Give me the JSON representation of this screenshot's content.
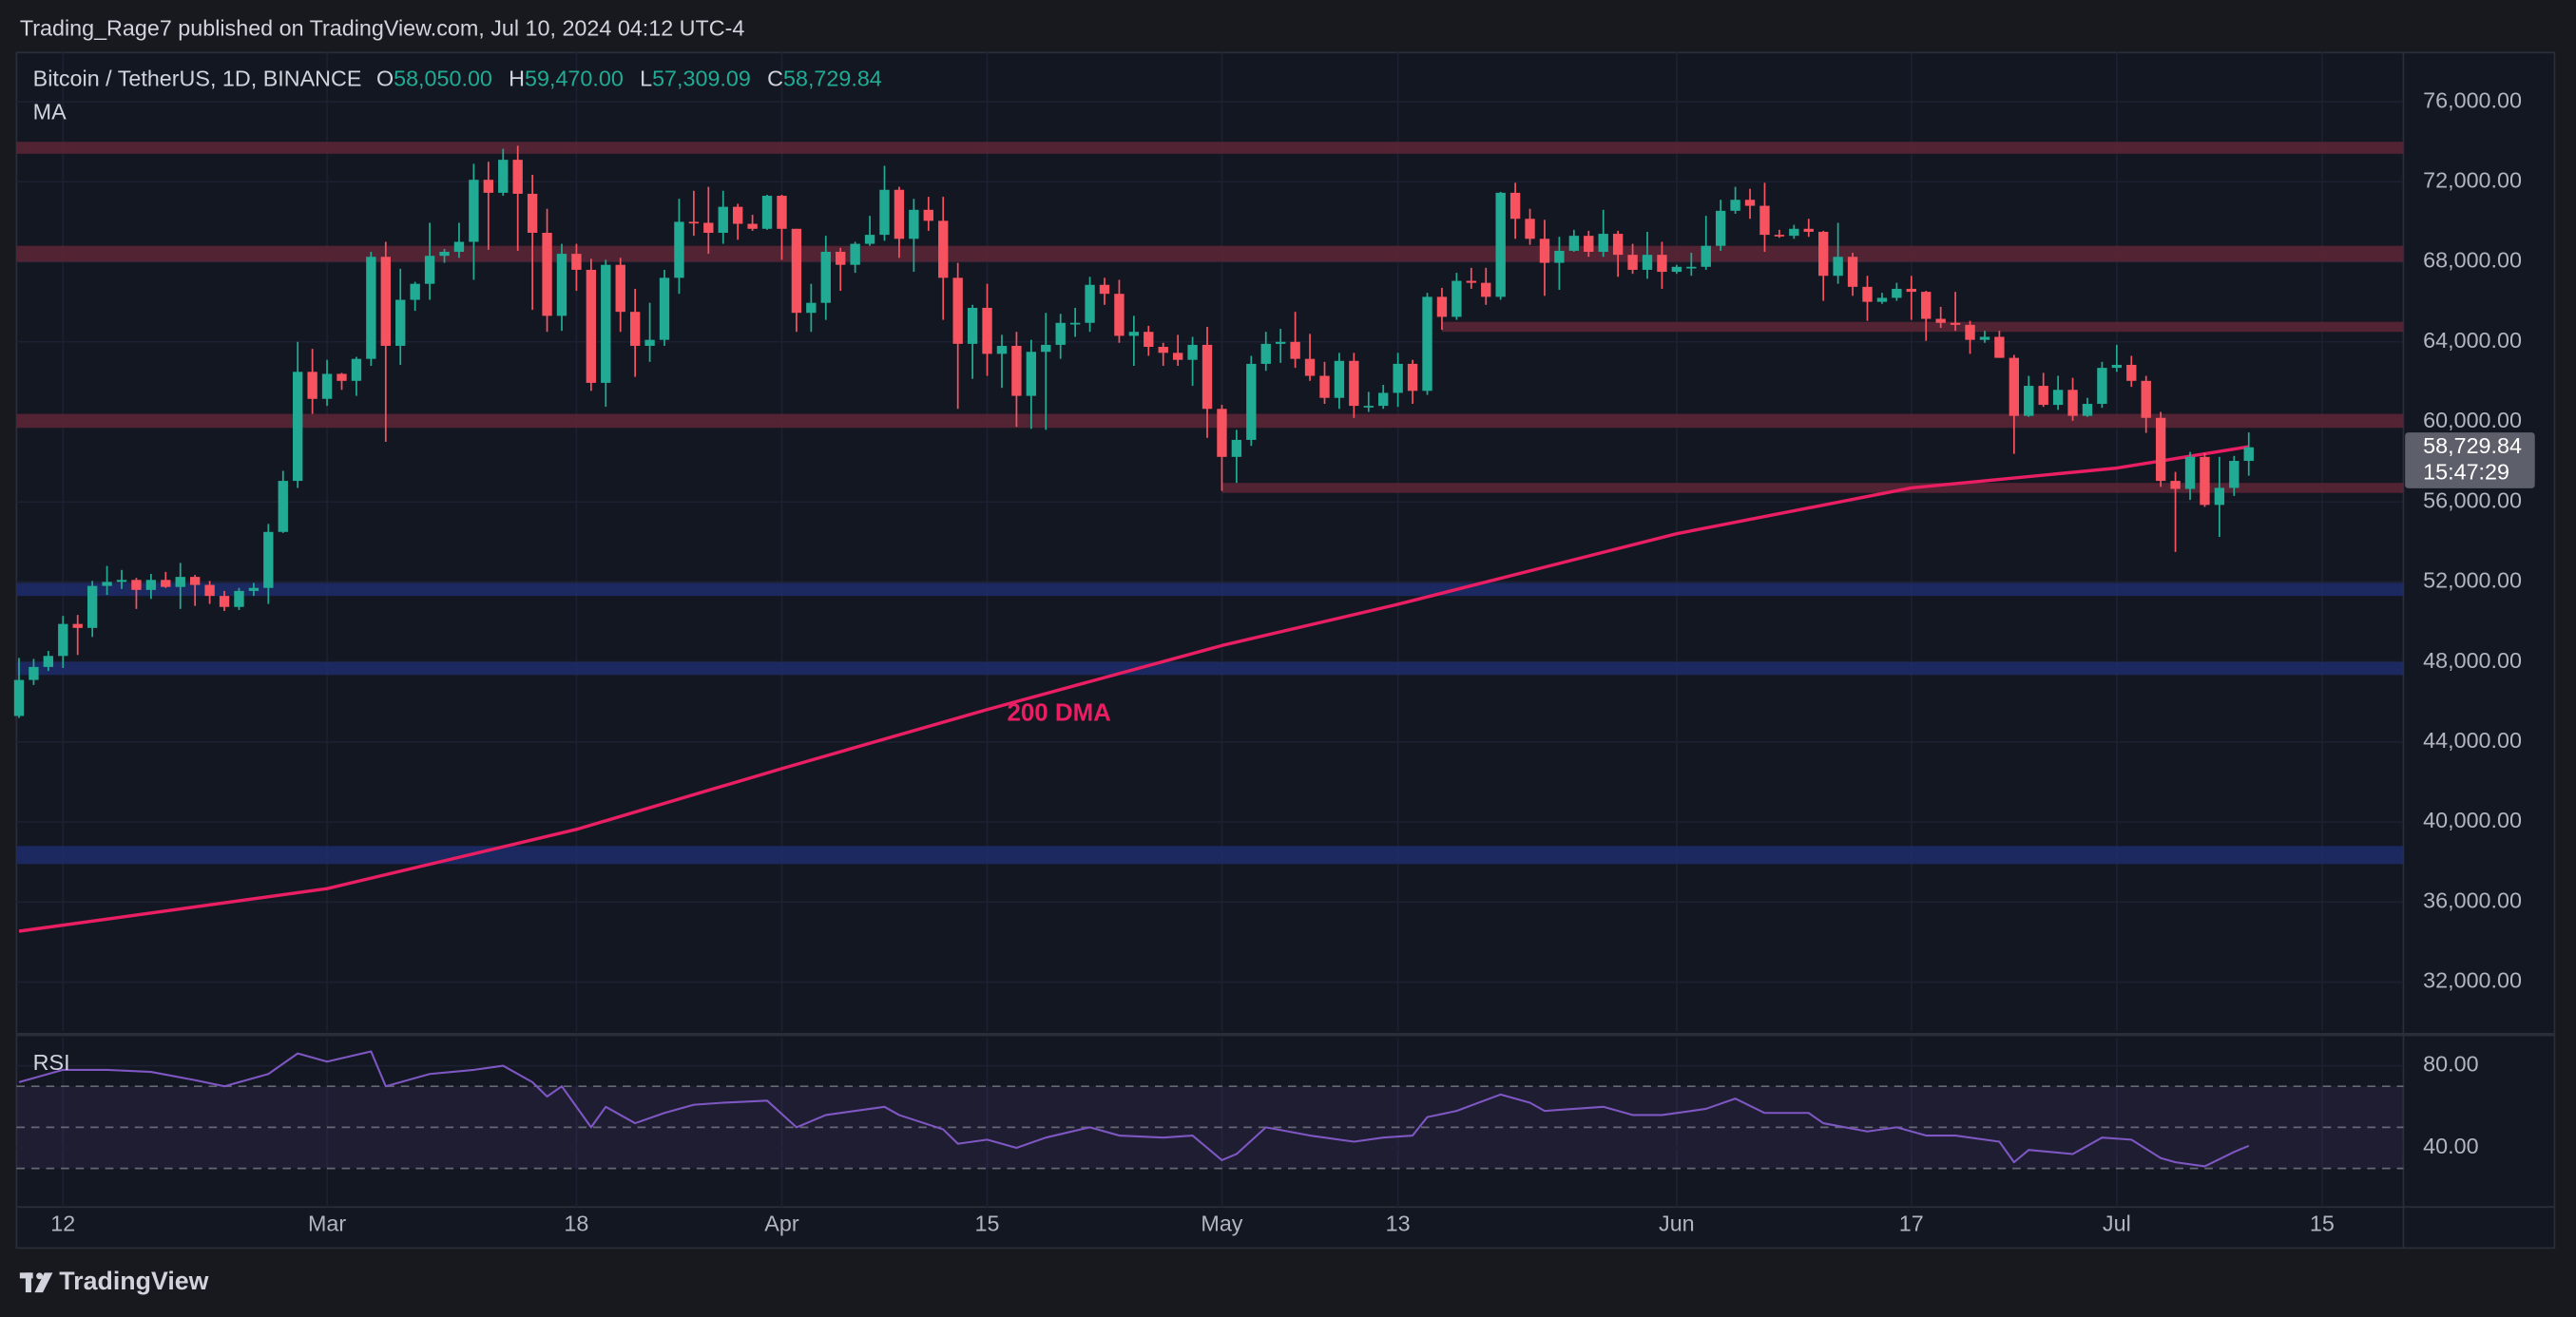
{
  "header": {
    "publisher": "Trading_Rage7 published on TradingView.com, Jul 10, 2024 04:12 UTC-4"
  },
  "footer": {
    "brand": "TradingView"
  },
  "chart_data": {
    "type": "candlestick",
    "title": "Bitcoin / TetherUS, 1D, BINANCE",
    "ohlc": [
      [
        "O",
        "58,050.00"
      ],
      [
        "H",
        "59,470.00"
      ],
      [
        "L",
        "57,309.09"
      ],
      [
        "C",
        "58,729.84"
      ]
    ],
    "indicator": "MA",
    "up_color": "#22ab94",
    "down_color": "#f7525f",
    "ylim": [
      29540,
      78460
    ],
    "yticks": [
      {
        "value": 76000,
        "label": "76,000.00"
      },
      {
        "value": 72000,
        "label": "72,000.00"
      },
      {
        "value": 68000,
        "label": "68,000.00"
      },
      {
        "value": 64000,
        "label": "64,000.00"
      },
      {
        "value": 60000,
        "label": "60,000.00"
      },
      {
        "value": 56000,
        "label": "56,000.00"
      },
      {
        "value": 52000,
        "label": "52,000.00"
      },
      {
        "value": 48000,
        "label": "48,000.00"
      },
      {
        "value": 44000,
        "label": "44,000.00"
      },
      {
        "value": 40000,
        "label": "40,000.00"
      },
      {
        "value": 36000,
        "label": "36,000.00"
      },
      {
        "value": 32000,
        "label": "32,000.00"
      }
    ],
    "xticks": [
      {
        "value": "Feb 12",
        "label": "12"
      },
      {
        "value": "Mar 1",
        "label": "Mar"
      },
      {
        "value": "Mar 18",
        "label": "18"
      },
      {
        "value": "Apr 1",
        "label": "Apr"
      },
      {
        "value": "Apr 15",
        "label": "15"
      },
      {
        "value": "May 1",
        "label": "May"
      },
      {
        "value": "May 13",
        "label": "13"
      },
      {
        "value": "Jun 1",
        "label": "Jun"
      },
      {
        "value": "Jun 17",
        "label": "17"
      },
      {
        "value": "Jul 1",
        "label": "Jul"
      },
      {
        "value": "Jul 15",
        "label": "15"
      }
    ],
    "grid": true,
    "last_price": {
      "value": 58729.84,
      "label": "58,729.84"
    },
    "countdown": "15:47:29",
    "zones": [
      {
        "low": 73400,
        "high": 74000,
        "color": "#5e2636"
      },
      {
        "low": 68000,
        "high": 68800,
        "color": "#5e2636"
      },
      {
        "low": 64500,
        "high": 65000,
        "color": "#5e2636",
        "from": "May 16"
      },
      {
        "low": 59700,
        "high": 60400,
        "color": "#5e2636"
      },
      {
        "low": 56450,
        "high": 56950,
        "color": "#5e2636",
        "from": "May 1"
      },
      {
        "low": 51300,
        "high": 51950,
        "color": "#1f2d6b"
      },
      {
        "low": 47350,
        "high": 48000,
        "color": "#1f2d6b"
      },
      {
        "low": 37900,
        "high": 38800,
        "color": "#1f2d6b"
      }
    ],
    "candles": {
      "x": [
        "Feb 9",
        "Feb 10",
        "Feb 11",
        "Feb 12",
        "Feb 13",
        "Feb 14",
        "Feb 15",
        "Feb 16",
        "Feb 17",
        "Feb 18",
        "Feb 19",
        "Feb 20",
        "Feb 21",
        "Feb 22",
        "Feb 23",
        "Feb 24",
        "Feb 25",
        "Feb 26",
        "Feb 27",
        "Feb 28",
        "Feb 29",
        "Mar 1",
        "Mar 2",
        "Mar 3",
        "Mar 4",
        "Mar 5",
        "Mar 6",
        "Mar 7",
        "Mar 8",
        "Mar 9",
        "Mar 10",
        "Mar 11",
        "Mar 12",
        "Mar 13",
        "Mar 14",
        "Mar 15",
        "Mar 16",
        "Mar 17",
        "Mar 18",
        "Mar 19",
        "Mar 20",
        "Mar 21",
        "Mar 22",
        "Mar 23",
        "Mar 24",
        "Mar 25",
        "Mar 26",
        "Mar 27",
        "Mar 28",
        "Mar 29",
        "Mar 30",
        "Mar 31",
        "Apr 1",
        "Apr 2",
        "Apr 3",
        "Apr 4",
        "Apr 5",
        "Apr 6",
        "Apr 7",
        "Apr 8",
        "Apr 9",
        "Apr 10",
        "Apr 11",
        "Apr 12",
        "Apr 13",
        "Apr 14",
        "Apr 15",
        "Apr 16",
        "Apr 17",
        "Apr 18",
        "Apr 19",
        "Apr 20",
        "Apr 21",
        "Apr 22",
        "Apr 23",
        "Apr 24",
        "Apr 25",
        "Apr 26",
        "Apr 27",
        "Apr 28",
        "Apr 29",
        "Apr 30",
        "May 1",
        "May 2",
        "May 3",
        "May 4",
        "May 5",
        "May 6",
        "May 7",
        "May 8",
        "May 9",
        "May 10",
        "May 11",
        "May 12",
        "May 13",
        "May 14",
        "May 15",
        "May 16",
        "May 17",
        "May 18",
        "May 19",
        "May 20",
        "May 21",
        "May 22",
        "May 23",
        "May 24",
        "May 25",
        "May 26",
        "May 27",
        "May 28",
        "May 29",
        "May 30",
        "May 31",
        "Jun 1",
        "Jun 2",
        "Jun 3",
        "Jun 4",
        "Jun 5",
        "Jun 6",
        "Jun 7",
        "Jun 8",
        "Jun 9",
        "Jun 10",
        "Jun 11",
        "Jun 12",
        "Jun 13",
        "Jun 14",
        "Jun 15",
        "Jun 16",
        "Jun 17",
        "Jun 18",
        "Jun 19",
        "Jun 20",
        "Jun 21",
        "Jun 22",
        "Jun 23",
        "Jun 24",
        "Jun 25",
        "Jun 26",
        "Jun 27",
        "Jun 28",
        "Jun 29",
        "Jun 30",
        "Jul 1",
        "Jul 2",
        "Jul 3",
        "Jul 4",
        "Jul 5",
        "Jul 6",
        "Jul 7",
        "Jul 8",
        "Jul 9",
        "Jul 10"
      ],
      "open": [
        45300,
        47100,
        47750,
        48300,
        49900,
        49700,
        51800,
        52000,
        52100,
        51600,
        52100,
        51750,
        52250,
        51850,
        51300,
        50750,
        51550,
        51700,
        54500,
        57050,
        62500,
        61150,
        62400,
        62050,
        63150,
        68250,
        63800,
        66100,
        66900,
        68300,
        68500,
        69000,
        72100,
        71450,
        73100,
        71400,
        69450,
        65300,
        68400,
        67600,
        61950,
        67850,
        65500,
        63800,
        64100,
        67200,
        70000,
        69950,
        69450,
        70750,
        69900,
        69650,
        71300,
        69650,
        65450,
        65950,
        68500,
        67850,
        68900,
        69350,
        71600,
        69150,
        70600,
        70050,
        67200,
        63900,
        65700,
        63400,
        63800,
        61300,
        63500,
        63850,
        64950,
        64950,
        66850,
        66400,
        64300,
        64500,
        63750,
        63450,
        63100,
        63850,
        60650,
        58250,
        59100,
        62900,
        63900,
        64000,
        63150,
        62300,
        61200,
        63050,
        60800,
        60800,
        61450,
        62900,
        61550,
        66250,
        65250,
        67050,
        66950,
        66250,
        71450,
        70150,
        69150,
        67950,
        68550,
        69300,
        68500,
        69400,
        68350,
        67600,
        68350,
        67500,
        67750,
        67750,
        68800,
        70550,
        71100,
        70800,
        69350,
        69300,
        69650,
        69500,
        67300,
        68250,
        66750,
        66000,
        66200,
        66650,
        66500,
        65150,
        64950,
        64850,
        64100,
        64250,
        63200,
        60300,
        61800,
        60850,
        61600,
        60300,
        60900,
        62700,
        62850,
        62050,
        60200,
        57050,
        56650,
        58250,
        55850,
        56700,
        58050
      ],
      "high": [
        48200,
        48150,
        48550,
        50300,
        50350,
        52050,
        52800,
        52600,
        52200,
        52400,
        52500,
        52950,
        52350,
        52050,
        51550,
        51700,
        51950,
        54900,
        57550,
        64000,
        63650,
        63100,
        62450,
        63250,
        68500,
        69000,
        67650,
        67000,
        69950,
        68650,
        69950,
        72900,
        73000,
        73650,
        73800,
        72350,
        70650,
        68900,
        68900,
        68150,
        68100,
        68200,
        66650,
        65950,
        67600,
        71150,
        71550,
        71750,
        71550,
        70900,
        70350,
        71350,
        71350,
        69650,
        66900,
        69300,
        68700,
        69000,
        70300,
        72800,
        71750,
        71150,
        71250,
        71250,
        67950,
        65850,
        66900,
        64350,
        64500,
        64100,
        65450,
        65400,
        65700,
        67250,
        67200,
        67100,
        65300,
        64800,
        63950,
        64350,
        64250,
        64750,
        60850,
        59600,
        63300,
        64500,
        64650,
        65500,
        64400,
        63000,
        63450,
        63450,
        61500,
        61850,
        63450,
        63100,
        66450,
        66700,
        67450,
        67700,
        67700,
        71500,
        71950,
        70650,
        70100,
        69250,
        69600,
        69550,
        70600,
        69550,
        68900,
        69500,
        69000,
        67850,
        68450,
        70300,
        71100,
        71750,
        71650,
        71950,
        69600,
        69850,
        70150,
        69550,
        69950,
        68450,
        67300,
        66450,
        66950,
        67300,
        66550,
        65750,
        66500,
        65050,
        64550,
        64550,
        63350,
        62300,
        62450,
        62300,
        62200,
        61200,
        63000,
        63850,
        63300,
        62300,
        60500,
        57500,
        58500,
        58450,
        58250,
        58300,
        59470
      ],
      "low": [
        45200,
        46850,
        47550,
        47700,
        48350,
        49250,
        51350,
        51650,
        50650,
        51150,
        51700,
        50650,
        50800,
        50900,
        50550,
        50600,
        51300,
        50900,
        54450,
        56700,
        60400,
        60800,
        61600,
        61300,
        62800,
        59000,
        62850,
        65550,
        66100,
        67950,
        68200,
        67100,
        68600,
        71300,
        68550,
        65600,
        64500,
        64550,
        66550,
        61550,
        60750,
        64500,
        62250,
        63000,
        63800,
        66400,
        69300,
        68400,
        68900,
        69100,
        69550,
        69600,
        68100,
        64500,
        64500,
        65100,
        66550,
        67450,
        68800,
        69050,
        68200,
        67500,
        69550,
        65100,
        60650,
        62150,
        62300,
        61700,
        59750,
        59650,
        59600,
        63150,
        64250,
        64500,
        65850,
        63950,
        62800,
        63300,
        62800,
        62800,
        61800,
        59200,
        56550,
        56950,
        58800,
        62550,
        62950,
        62700,
        62050,
        60900,
        60650,
        60200,
        60500,
        60650,
        60750,
        60900,
        61350,
        64600,
        65100,
        66650,
        65850,
        66100,
        69150,
        68850,
        66300,
        66600,
        68500,
        68250,
        68250,
        67250,
        67400,
        67150,
        66650,
        67400,
        67300,
        67600,
        68550,
        70400,
        70150,
        68500,
        69200,
        69150,
        69250,
        66050,
        66900,
        66300,
        65050,
        65900,
        66050,
        65100,
        64050,
        64700,
        64550,
        63400,
        63950,
        63200,
        58400,
        60250,
        60750,
        60600,
        60050,
        60250,
        60700,
        62500,
        61750,
        59450,
        56750,
        53500,
        56100,
        55750,
        54250,
        56300,
        57309.09
      ],
      "close": [
        47100,
        47750,
        48300,
        49900,
        49700,
        51800,
        52000,
        52100,
        51600,
        52100,
        51750,
        52250,
        51850,
        51300,
        50750,
        51550,
        51700,
        54500,
        57050,
        62500,
        61150,
        62400,
        62050,
        63150,
        68250,
        63800,
        66100,
        66900,
        68300,
        68500,
        69000,
        72100,
        71450,
        73100,
        71400,
        69450,
        65300,
        68400,
        67600,
        61950,
        67850,
        65500,
        63800,
        64100,
        67200,
        70000,
        69950,
        69450,
        70750,
        69900,
        69650,
        71300,
        69650,
        65450,
        65950,
        68500,
        67850,
        68900,
        69350,
        71600,
        69150,
        70600,
        70050,
        67200,
        63900,
        65700,
        63400,
        63800,
        61300,
        63500,
        63850,
        64950,
        64950,
        66850,
        66400,
        64300,
        64500,
        63750,
        63450,
        63100,
        63850,
        60650,
        58250,
        59100,
        62900,
        63900,
        64000,
        63150,
        62300,
        61200,
        63050,
        60800,
        60800,
        61450,
        62900,
        61550,
        66250,
        65250,
        67050,
        66950,
        66250,
        71450,
        70150,
        69150,
        67950,
        68550,
        69300,
        68500,
        69400,
        68350,
        67600,
        68350,
        67500,
        67750,
        67750,
        68800,
        70550,
        71100,
        70800,
        69350,
        69300,
        69650,
        69500,
        67300,
        68250,
        66750,
        66000,
        66200,
        66650,
        66500,
        65150,
        64950,
        64850,
        64100,
        64250,
        63200,
        60300,
        61800,
        60850,
        61600,
        60300,
        60900,
        62700,
        62850,
        62050,
        60200,
        57050,
        56650,
        58250,
        55850,
        56700,
        58050,
        58729.84
      ]
    },
    "series": [
      {
        "name": "200 DMA",
        "color": "#e91e63",
        "x": [
          "Feb 9",
          "Mar 1",
          "Mar 18",
          "Apr 1",
          "Apr 15",
          "May 1",
          "May 13",
          "Jun 1",
          "Jun 17",
          "Jul 1",
          "Jul 10"
        ],
        "values": [
          34540,
          36670,
          39630,
          42670,
          45620,
          48820,
          50880,
          54410,
          56700,
          57690,
          58760
        ]
      }
    ],
    "rsi": {
      "label": "RSI",
      "color": "#7e57c2",
      "ylim": [
        11.2,
        93.6
      ],
      "yticks": [
        {
          "value": 80,
          "label": "80.00"
        },
        {
          "value": 40,
          "label": "40.00"
        }
      ],
      "levels": [
        70,
        50,
        30
      ],
      "x": [
        "Feb 9",
        "Feb 12",
        "Feb 15",
        "Feb 18",
        "Feb 21",
        "Feb 23",
        "Feb 26",
        "Feb 28",
        "Mar 1",
        "Mar 4",
        "Mar 5",
        "Mar 8",
        "Mar 11",
        "Mar 13",
        "Mar 15",
        "Mar 16",
        "Mar 17",
        "Mar 19",
        "Mar 20",
        "Mar 22",
        "Mar 24",
        "Mar 26",
        "Mar 28",
        "Mar 31",
        "Apr 2",
        "Apr 4",
        "Apr 8",
        "Apr 9",
        "Apr 12",
        "Apr 13",
        "Apr 15",
        "Apr 17",
        "Apr 19",
        "Apr 22",
        "Apr 24",
        "Apr 27",
        "Apr 29",
        "May 1",
        "May 2",
        "May 4",
        "May 7",
        "May 10",
        "May 12",
        "May 14",
        "May 15",
        "May 17",
        "May 20",
        "May 22",
        "May 23",
        "May 27",
        "May 29",
        "May 31",
        "Jun 3",
        "Jun 5",
        "Jun 7",
        "Jun 10",
        "Jun 11",
        "Jun 14",
        "Jun 16",
        "Jun 18",
        "Jun 20",
        "Jun 23",
        "Jun 24",
        "Jun 25",
        "Jun 28",
        "Jun 30",
        "Jul 2",
        "Jul 4",
        "Jul 5",
        "Jul 7",
        "Jul 9",
        "Jul 10"
      ],
      "values": [
        72,
        78,
        78,
        77,
        73,
        70,
        76,
        86,
        82,
        87,
        70,
        76,
        78,
        80,
        72,
        65,
        70,
        50,
        60,
        52,
        57,
        61,
        62,
        63,
        50,
        56,
        60,
        56,
        49,
        42,
        44,
        40,
        45,
        50,
        46,
        45,
        46,
        34,
        37,
        50,
        46,
        43,
        45,
        46,
        55,
        58,
        66,
        62,
        58,
        60,
        56,
        56,
        59,
        64,
        57,
        57,
        52,
        48,
        50,
        46,
        46,
        43,
        33,
        39,
        37,
        45,
        44,
        35,
        33,
        31,
        38,
        41
      ]
    }
  }
}
